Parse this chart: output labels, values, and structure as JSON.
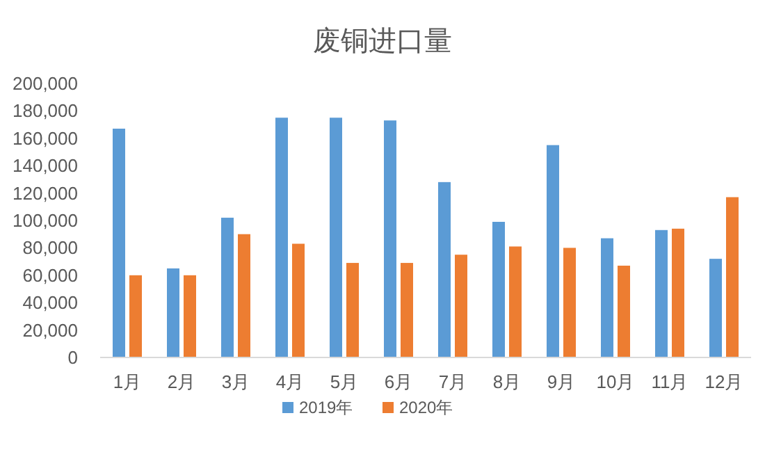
{
  "chart_data": {
    "type": "bar",
    "title": "废铜进口量",
    "categories": [
      "1月",
      "2月",
      "3月",
      "4月",
      "5月",
      "6月",
      "7月",
      "8月",
      "9月",
      "10月",
      "11月",
      "12月"
    ],
    "series": [
      {
        "name": "2019年",
        "color": "#5b9bd5",
        "values": [
          167000,
          65000,
          102000,
          175000,
          175000,
          173000,
          128000,
          99000,
          155000,
          87000,
          93000,
          72000
        ]
      },
      {
        "name": "2020年",
        "color": "#ed7d31",
        "values": [
          60000,
          60000,
          90000,
          83000,
          69000,
          69000,
          75000,
          81000,
          80000,
          67000,
          94000,
          117000
        ]
      }
    ],
    "ylim": [
      0,
      200000
    ],
    "yticks": [
      {
        "value": 0,
        "label": "0"
      },
      {
        "value": 20000,
        "label": "20,000"
      },
      {
        "value": 40000,
        "label": "40,000"
      },
      {
        "value": 60000,
        "label": "60,000"
      },
      {
        "value": 80000,
        "label": "80,000"
      },
      {
        "value": 100000,
        "label": "100,000"
      },
      {
        "value": 120000,
        "label": "120,000"
      },
      {
        "value": 140000,
        "label": "140,000"
      },
      {
        "value": 160000,
        "label": "160,000"
      },
      {
        "value": 180000,
        "label": "180,000"
      },
      {
        "value": 200000,
        "label": "200,000"
      }
    ],
    "grid": false,
    "legend": "bottom"
  }
}
